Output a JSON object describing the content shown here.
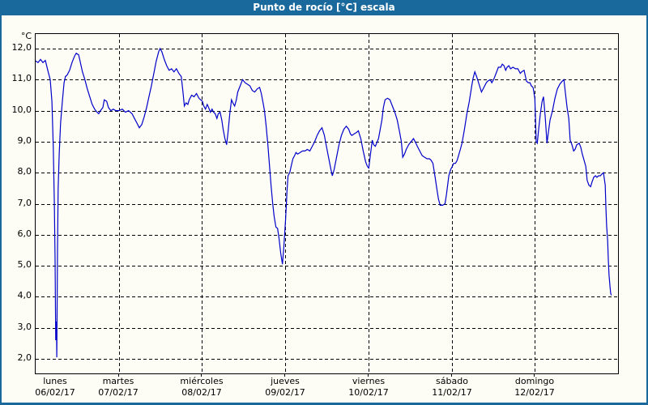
{
  "window": {
    "title": "Punto de rocío [°C] escala"
  },
  "chart_data": {
    "type": "line",
    "title": "Punto de rocío [°C] escala",
    "ylabel": "°C",
    "unit_label": "°C",
    "ylim": [
      1.53,
      12.47
    ],
    "xlim_hours": [
      0,
      168
    ],
    "grid": "dashed-black",
    "legend": "none",
    "line_color": "#0000cb",
    "background": "#fdfdf5",
    "titlebar_color": "#1a699c",
    "y_ticks": [
      {
        "v": 12,
        "label": "12,0"
      },
      {
        "v": 11,
        "label": "11,0"
      },
      {
        "v": 10,
        "label": "10,0"
      },
      {
        "v": 9,
        "label": "9,0"
      },
      {
        "v": 8,
        "label": "8,0"
      },
      {
        "v": 7,
        "label": "7,0"
      },
      {
        "v": 6,
        "label": "6,0"
      },
      {
        "v": 5,
        "label": "5,0"
      },
      {
        "v": 4,
        "label": "4,0"
      },
      {
        "v": 3,
        "label": "3,0"
      },
      {
        "v": 2,
        "label": "2,0"
      }
    ],
    "x_ticks": [
      {
        "day": "lunes",
        "date": "06/02/17"
      },
      {
        "day": "martes",
        "date": "07/02/17"
      },
      {
        "day": "miércoles",
        "date": "08/02/17"
      },
      {
        "day": "jueves",
        "date": "09/02/17"
      },
      {
        "day": "viernes",
        "date": "10/02/17"
      },
      {
        "day": "sábado",
        "date": "11/02/17"
      },
      {
        "day": "domingo",
        "date": "12/02/17"
      }
    ],
    "series": [
      {
        "name": "Punto de rocío",
        "points": [
          [
            0.0,
            11.6
          ],
          [
            0.7,
            11.55
          ],
          [
            1.4,
            11.65
          ],
          [
            2.1,
            11.55
          ],
          [
            2.8,
            11.62
          ],
          [
            3.5,
            11.3
          ],
          [
            4.2,
            11.0
          ],
          [
            4.7,
            10.3
          ],
          [
            5.1,
            8.8
          ],
          [
            5.4,
            7.0
          ],
          [
            5.6,
            5.2
          ],
          [
            5.8,
            2.6
          ],
          [
            6.0,
            3.2
          ],
          [
            6.1,
            2.05
          ],
          [
            6.3,
            5.5
          ],
          [
            6.5,
            7.5
          ],
          [
            6.8,
            8.6
          ],
          [
            7.2,
            9.6
          ],
          [
            7.7,
            10.3
          ],
          [
            8.2,
            10.9
          ],
          [
            8.6,
            11.1
          ],
          [
            9.1,
            11.15
          ],
          [
            9.8,
            11.3
          ],
          [
            10.5,
            11.55
          ],
          [
            11.2,
            11.75
          ],
          [
            11.7,
            11.85
          ],
          [
            12.4,
            11.8
          ],
          [
            12.8,
            11.6
          ],
          [
            13.5,
            11.25
          ],
          [
            14.2,
            11.0
          ],
          [
            14.9,
            10.7
          ],
          [
            15.6,
            10.45
          ],
          [
            16.3,
            10.2
          ],
          [
            17.0,
            10.05
          ],
          [
            17.7,
            9.95
          ],
          [
            18.2,
            9.9
          ],
          [
            18.7,
            10.0
          ],
          [
            19.4,
            10.1
          ],
          [
            19.8,
            10.35
          ],
          [
            20.5,
            10.3
          ],
          [
            21.0,
            10.1
          ],
          [
            21.7,
            10.0
          ],
          [
            22.4,
            10.05
          ],
          [
            23.1,
            10.0
          ],
          [
            24.0,
            10.0
          ],
          [
            25.0,
            10.05
          ],
          [
            25.9,
            9.95
          ],
          [
            26.8,
            10.0
          ],
          [
            27.8,
            9.9
          ],
          [
            28.5,
            9.75
          ],
          [
            29.2,
            9.6
          ],
          [
            29.9,
            9.45
          ],
          [
            30.6,
            9.55
          ],
          [
            31.3,
            9.8
          ],
          [
            32.0,
            10.1
          ],
          [
            32.7,
            10.45
          ],
          [
            33.4,
            10.8
          ],
          [
            34.1,
            11.2
          ],
          [
            34.8,
            11.6
          ],
          [
            35.5,
            11.9
          ],
          [
            35.9,
            12.0
          ],
          [
            36.4,
            11.9
          ],
          [
            37.1,
            11.65
          ],
          [
            37.8,
            11.45
          ],
          [
            38.5,
            11.3
          ],
          [
            39.2,
            11.35
          ],
          [
            39.9,
            11.25
          ],
          [
            40.6,
            11.35
          ],
          [
            41.3,
            11.2
          ],
          [
            42.0,
            11.1
          ],
          [
            42.5,
            10.6
          ],
          [
            42.9,
            10.15
          ],
          [
            43.4,
            10.25
          ],
          [
            43.9,
            10.2
          ],
          [
            44.3,
            10.35
          ],
          [
            45.0,
            10.5
          ],
          [
            45.7,
            10.45
          ],
          [
            46.4,
            10.55
          ],
          [
            47.1,
            10.4
          ],
          [
            47.6,
            10.35
          ],
          [
            48.1,
            10.3
          ],
          [
            48.5,
            10.15
          ],
          [
            49.0,
            10.05
          ],
          [
            49.5,
            10.2
          ],
          [
            49.9,
            10.1
          ],
          [
            50.4,
            9.95
          ],
          [
            50.9,
            10.05
          ],
          [
            51.3,
            9.95
          ],
          [
            51.8,
            9.9
          ],
          [
            52.3,
            9.75
          ],
          [
            52.7,
            9.9
          ],
          [
            53.2,
            9.95
          ],
          [
            53.7,
            9.7
          ],
          [
            54.1,
            9.4
          ],
          [
            54.6,
            9.1
          ],
          [
            55.1,
            8.9
          ],
          [
            55.5,
            9.3
          ],
          [
            56.0,
            9.9
          ],
          [
            56.5,
            10.35
          ],
          [
            56.9,
            10.25
          ],
          [
            57.4,
            10.15
          ],
          [
            57.9,
            10.35
          ],
          [
            58.3,
            10.6
          ],
          [
            59.0,
            10.8
          ],
          [
            59.7,
            11.0
          ],
          [
            60.4,
            10.9
          ],
          [
            61.1,
            10.85
          ],
          [
            61.8,
            10.8
          ],
          [
            62.5,
            10.65
          ],
          [
            63.2,
            10.6
          ],
          [
            63.9,
            10.7
          ],
          [
            64.6,
            10.75
          ],
          [
            65.1,
            10.55
          ],
          [
            65.6,
            10.25
          ],
          [
            66.0,
            10.0
          ],
          [
            66.5,
            9.5
          ],
          [
            67.0,
            8.9
          ],
          [
            67.4,
            8.3
          ],
          [
            67.9,
            7.6
          ],
          [
            68.4,
            7.0
          ],
          [
            68.8,
            6.6
          ],
          [
            69.3,
            6.25
          ],
          [
            69.8,
            6.2
          ],
          [
            70.2,
            5.9
          ],
          [
            70.7,
            5.4
          ],
          [
            71.2,
            5.05
          ],
          [
            71.6,
            5.6
          ],
          [
            72.1,
            6.5
          ],
          [
            72.5,
            7.4
          ],
          [
            72.8,
            7.9
          ],
          [
            73.3,
            8.0
          ],
          [
            73.7,
            8.2
          ],
          [
            74.2,
            8.45
          ],
          [
            74.7,
            8.55
          ],
          [
            75.1,
            8.65
          ],
          [
            75.6,
            8.6
          ],
          [
            76.3,
            8.65
          ],
          [
            77.0,
            8.7
          ],
          [
            77.7,
            8.7
          ],
          [
            78.4,
            8.75
          ],
          [
            79.1,
            8.7
          ],
          [
            79.8,
            8.85
          ],
          [
            80.5,
            9.0
          ],
          [
            81.2,
            9.2
          ],
          [
            81.9,
            9.35
          ],
          [
            82.6,
            9.45
          ],
          [
            83.3,
            9.2
          ],
          [
            83.8,
            8.9
          ],
          [
            84.5,
            8.5
          ],
          [
            85.2,
            8.1
          ],
          [
            85.6,
            7.9
          ],
          [
            86.1,
            8.1
          ],
          [
            86.8,
            8.5
          ],
          [
            87.5,
            8.9
          ],
          [
            88.2,
            9.2
          ],
          [
            88.9,
            9.4
          ],
          [
            89.6,
            9.5
          ],
          [
            90.3,
            9.4
          ],
          [
            90.8,
            9.25
          ],
          [
            91.2,
            9.2
          ],
          [
            91.9,
            9.25
          ],
          [
            92.6,
            9.3
          ],
          [
            93.1,
            9.35
          ],
          [
            93.8,
            9.1
          ],
          [
            94.5,
            8.7
          ],
          [
            95.2,
            8.35
          ],
          [
            95.7,
            8.2
          ],
          [
            96.1,
            8.15
          ],
          [
            96.6,
            8.6
          ],
          [
            97.1,
            9.05
          ],
          [
            97.5,
            8.9
          ],
          [
            98.0,
            8.85
          ],
          [
            98.9,
            9.1
          ],
          [
            99.4,
            9.4
          ],
          [
            99.9,
            9.7
          ],
          [
            100.3,
            10.1
          ],
          [
            100.8,
            10.35
          ],
          [
            101.5,
            10.4
          ],
          [
            102.2,
            10.35
          ],
          [
            102.9,
            10.15
          ],
          [
            103.6,
            9.95
          ],
          [
            104.3,
            9.7
          ],
          [
            105.0,
            9.3
          ],
          [
            105.5,
            9.0
          ],
          [
            105.9,
            8.5
          ],
          [
            106.4,
            8.6
          ],
          [
            106.9,
            8.75
          ],
          [
            107.6,
            8.9
          ],
          [
            108.3,
            9.0
          ],
          [
            109.0,
            9.1
          ],
          [
            109.7,
            8.95
          ],
          [
            110.1,
            8.85
          ],
          [
            110.8,
            8.7
          ],
          [
            111.5,
            8.55
          ],
          [
            112.2,
            8.5
          ],
          [
            112.9,
            8.45
          ],
          [
            113.6,
            8.45
          ],
          [
            114.1,
            8.4
          ],
          [
            114.6,
            8.3
          ],
          [
            115.3,
            7.8
          ],
          [
            115.7,
            7.5
          ],
          [
            116.2,
            7.15
          ],
          [
            116.7,
            6.95
          ],
          [
            117.4,
            6.95
          ],
          [
            118.1,
            7.0
          ],
          [
            118.5,
            7.3
          ],
          [
            119.2,
            7.9
          ],
          [
            119.7,
            8.1
          ],
          [
            120.2,
            8.2
          ],
          [
            120.6,
            8.3
          ],
          [
            121.1,
            8.3
          ],
          [
            121.6,
            8.4
          ],
          [
            122.0,
            8.55
          ],
          [
            122.5,
            8.75
          ],
          [
            123.0,
            8.95
          ],
          [
            123.7,
            9.4
          ],
          [
            124.4,
            9.9
          ],
          [
            125.1,
            10.3
          ],
          [
            125.8,
            10.8
          ],
          [
            126.2,
            11.05
          ],
          [
            126.7,
            11.25
          ],
          [
            127.2,
            11.1
          ],
          [
            127.9,
            10.85
          ],
          [
            128.6,
            10.6
          ],
          [
            129.3,
            10.75
          ],
          [
            130.0,
            10.9
          ],
          [
            130.4,
            10.95
          ],
          [
            131.1,
            11.0
          ],
          [
            131.6,
            10.9
          ],
          [
            132.1,
            11.0
          ],
          [
            132.8,
            11.2
          ],
          [
            133.5,
            11.4
          ],
          [
            134.2,
            11.4
          ],
          [
            134.6,
            11.5
          ],
          [
            135.1,
            11.45
          ],
          [
            135.6,
            11.3
          ],
          [
            136.0,
            11.4
          ],
          [
            136.5,
            11.45
          ],
          [
            137.0,
            11.35
          ],
          [
            137.7,
            11.4
          ],
          [
            138.4,
            11.35
          ],
          [
            139.1,
            11.35
          ],
          [
            139.8,
            11.2
          ],
          [
            140.2,
            11.25
          ],
          [
            140.9,
            11.3
          ],
          [
            141.6,
            10.95
          ],
          [
            142.1,
            10.9
          ],
          [
            142.6,
            10.9
          ],
          [
            143.0,
            10.8
          ],
          [
            143.5,
            10.75
          ],
          [
            144.0,
            10.4
          ],
          [
            144.4,
            9.0
          ],
          [
            144.7,
            8.95
          ],
          [
            145.1,
            9.4
          ],
          [
            145.6,
            9.9
          ],
          [
            146.1,
            10.3
          ],
          [
            146.5,
            10.45
          ],
          [
            147.0,
            9.8
          ],
          [
            147.5,
            8.95
          ],
          [
            147.9,
            9.3
          ],
          [
            148.4,
            9.7
          ],
          [
            149.1,
            10.0
          ],
          [
            149.8,
            10.4
          ],
          [
            150.5,
            10.7
          ],
          [
            151.2,
            10.85
          ],
          [
            151.9,
            10.95
          ],
          [
            152.4,
            11.0
          ],
          [
            152.8,
            10.6
          ],
          [
            153.3,
            10.1
          ],
          [
            153.8,
            9.75
          ],
          [
            154.2,
            9.05
          ],
          [
            154.7,
            8.9
          ],
          [
            155.2,
            8.7
          ],
          [
            155.6,
            8.75
          ],
          [
            156.1,
            8.9
          ],
          [
            156.8,
            8.95
          ],
          [
            157.3,
            8.8
          ],
          [
            157.7,
            8.6
          ],
          [
            158.2,
            8.4
          ],
          [
            158.7,
            8.2
          ],
          [
            159.1,
            7.75
          ],
          [
            159.6,
            7.6
          ],
          [
            160.1,
            7.55
          ],
          [
            160.5,
            7.7
          ],
          [
            161.0,
            7.85
          ],
          [
            161.5,
            7.9
          ],
          [
            161.9,
            7.85
          ],
          [
            162.4,
            7.9
          ],
          [
            162.9,
            7.9
          ],
          [
            163.3,
            7.95
          ],
          [
            163.8,
            8.0
          ],
          [
            164.3,
            7.6
          ],
          [
            164.5,
            6.9
          ],
          [
            164.7,
            6.3
          ],
          [
            165.0,
            5.8
          ],
          [
            165.2,
            5.2
          ],
          [
            165.4,
            4.7
          ],
          [
            165.7,
            4.3
          ],
          [
            165.9,
            4.1
          ],
          [
            166.1,
            4.05
          ]
        ]
      }
    ]
  }
}
